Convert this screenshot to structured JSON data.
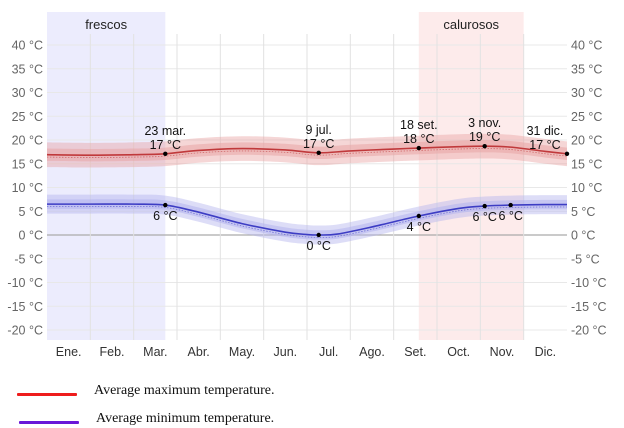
{
  "chart_data": {
    "type": "line",
    "title": "",
    "xlabel": "",
    "ylabel": "",
    "ylim": [
      -23,
      42
    ],
    "y_ticks": [
      40,
      35,
      30,
      25,
      20,
      15,
      10,
      5,
      0,
      -5,
      -10,
      -15,
      -20
    ],
    "y_tick_suffix": " °C",
    "grid": true,
    "categories": [
      "Ene.",
      "Feb.",
      "Mar.",
      "Abr.",
      "May.",
      "Jun.",
      "Jul.",
      "Ago.",
      "Set.",
      "Oct.",
      "Nov.",
      "Dic."
    ],
    "seasons": [
      {
        "label": "frescos",
        "start_month": 0.0,
        "end_month": 2.73,
        "color": "#ececfd"
      },
      {
        "label": "calurosos",
        "start_month": 8.58,
        "end_month": 11.0,
        "color": "#fdebeb"
      }
    ],
    "series": [
      {
        "name": "Average maximum temperature.",
        "color": "#c0393b",
        "band_color": "#e8a5a5",
        "x": [
          0.0,
          1.0,
          2.0,
          2.73,
          3.5,
          4.5,
          5.5,
          6.27,
          7.0,
          8.0,
          8.58,
          9.5,
          10.1,
          10.7,
          11.5,
          12.0
        ],
        "values": [
          16.9,
          16.8,
          16.9,
          17.1,
          17.8,
          18.2,
          17.9,
          17.3,
          17.7,
          18.1,
          18.3,
          18.6,
          18.7,
          18.5,
          17.6,
          17.1
        ],
        "band_inner": 1.3,
        "band_outer": 2.6
      },
      {
        "name": "Average minimum temperature.",
        "color": "#3d3dc4",
        "band_color": "#b3b3ee",
        "x": [
          0.0,
          1.0,
          2.0,
          2.73,
          3.5,
          4.5,
          5.5,
          6.0,
          6.27,
          6.7,
          7.5,
          8.58,
          9.5,
          10.1,
          10.7,
          11.5,
          12.0
        ],
        "values": [
          6.5,
          6.5,
          6.5,
          6.3,
          4.8,
          2.4,
          0.6,
          0.1,
          0.0,
          0.2,
          1.7,
          4.0,
          5.6,
          6.1,
          6.3,
          6.4,
          6.4
        ],
        "band_inner": 1.0,
        "band_outer": 2.0
      }
    ],
    "annotations": [
      {
        "date": "23 mar.",
        "value_label": "17 °C",
        "x": 2.73,
        "y": 17.1,
        "position": "above"
      },
      {
        "date": "9 jul.",
        "value_label": "17 °C",
        "x": 6.27,
        "y": 17.3,
        "position": "above"
      },
      {
        "date": "18 set.",
        "value_label": "18 °C",
        "x": 8.58,
        "y": 18.3,
        "position": "above"
      },
      {
        "date": "3 nov.",
        "value_label": "19 °C",
        "x": 10.1,
        "y": 18.7,
        "position": "above"
      },
      {
        "date": "31 dic.",
        "value_label": "17 °C",
        "x": 12.0,
        "y": 17.1,
        "position": "above-left"
      },
      {
        "date": "",
        "value_label": "6 °C",
        "x": 2.73,
        "y": 6.3,
        "position": "below"
      },
      {
        "date": "",
        "value_label": "0 °C",
        "x": 6.27,
        "y": 0.0,
        "position": "below"
      },
      {
        "date": "",
        "value_label": "4 °C",
        "x": 8.58,
        "y": 4.0,
        "position": "below"
      },
      {
        "date": "",
        "value_label": "6 °C",
        "x": 10.1,
        "y": 6.1,
        "position": "below"
      },
      {
        "date": "",
        "value_label": "6 °C",
        "x": 10.7,
        "y": 6.3,
        "position": "below"
      }
    ]
  },
  "legend": {
    "items": [
      {
        "label": "Average maximum temperature.",
        "color": "#ee1c1c"
      },
      {
        "label": "Average minimum temperature.",
        "color": "#6a17d8"
      }
    ]
  }
}
